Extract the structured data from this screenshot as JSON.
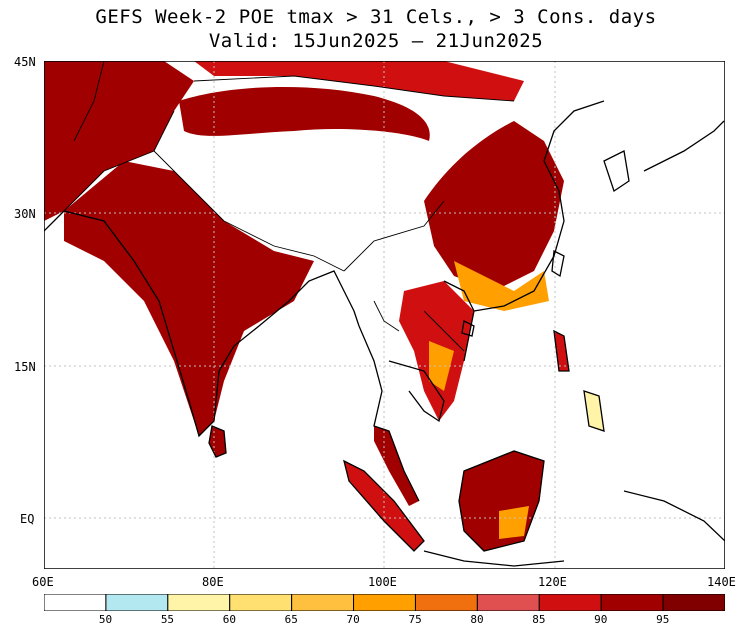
{
  "title_line1": "GEFS Week-2 POE tmax > 31 Cels., > 3 Cons. days",
  "title_line2": "Valid: 15Jun2025 – 21Jun2025",
  "lat_labels": [
    "45N",
    "30N",
    "15N",
    "EQ"
  ],
  "lon_labels": [
    "60E",
    "80E",
    "100E",
    "120E",
    "140E"
  ],
  "legend": {
    "breaks": [
      "50",
      "55",
      "60",
      "65",
      "70",
      "75",
      "80",
      "85",
      "90",
      "95"
    ],
    "colors": [
      "#ffffff",
      "#b4e8f0",
      "#fff4a8",
      "#ffe070",
      "#ffc040",
      "#ffa000",
      "#f07010",
      "#e05050",
      "#d01010",
      "#a00000",
      "#800000"
    ]
  },
  "map_colors": {
    "land_high": "#a00000",
    "land_mid": "#d01010",
    "land_low": "#ffa000",
    "coast": "#000000",
    "grid": "#c0c0c0"
  }
}
